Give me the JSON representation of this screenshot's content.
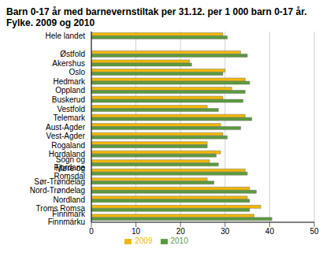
{
  "chart_data": {
    "type": "bar",
    "orientation": "horizontal",
    "title": "Barn 0-17 år med barnevernstiltak per 31.12. per 1 000 barn 0-17 år. Fylke. 2009 og 2010",
    "categories": [
      "Hele landet",
      null,
      "Østfold",
      "Akershus",
      "Oslo",
      "Hedmark",
      "Oppland",
      "Buskerud",
      "Vestfold",
      "Telemark",
      "Aust-Agder",
      "Vest-Agder",
      "Rogaland",
      "Hordaland",
      "Sogn og Fjordane",
      "Møre og Romsdal",
      "Sør-Trøndelag",
      "Nord-Trøndelag",
      "Nordland",
      "Troms Romsa",
      "Finnmark Finnmárku"
    ],
    "series": [
      {
        "name": "2009",
        "color": "#f2b705",
        "values": [
          29.5,
          null,
          33.5,
          22,
          30,
          34.5,
          31.5,
          29.5,
          26,
          34.5,
          29,
          29.5,
          26,
          29,
          26.5,
          34.5,
          26,
          35.5,
          35,
          38,
          36.5
        ]
      },
      {
        "name": "2010",
        "color": "#5a9a3c",
        "values": [
          30.5,
          null,
          35,
          22.5,
          29.5,
          35.5,
          34.5,
          34,
          28.5,
          36,
          33.5,
          30.5,
          26,
          28,
          28.5,
          35,
          27.5,
          37,
          35.5,
          35.5,
          40.5
        ]
      }
    ],
    "xlim": [
      0,
      50
    ],
    "xticks": [
      0,
      10,
      20,
      30,
      40,
      50
    ],
    "grid": true,
    "legend": "bottom"
  }
}
